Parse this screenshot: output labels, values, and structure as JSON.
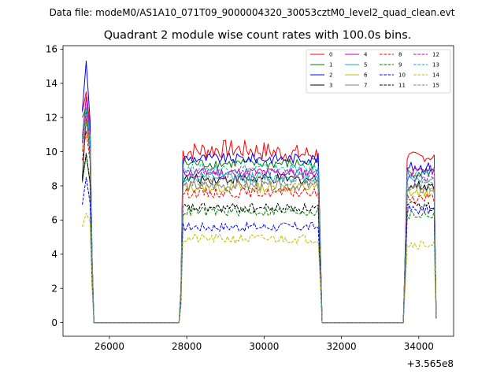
{
  "header": {
    "file_line": "Data file: modeM0/AS1A10_071T09_9000004320_30053cztM0_level2_quad_clean.evt"
  },
  "chart_data": {
    "type": "line",
    "title": "Quadrant 2 module wise count rates with 100.0s bins.",
    "xlabel": "",
    "ylabel": "",
    "x_offset_label": "+3.565e8",
    "xlim": [
      24800,
      34900
    ],
    "ylim": [
      -0.8,
      16.2
    ],
    "x_ticks": [
      26000,
      28000,
      30000,
      32000,
      34000
    ],
    "x_tick_labels": [
      "26000",
      "28000",
      "30000",
      "32000",
      "34000"
    ],
    "y_ticks": [
      0,
      2,
      4,
      6,
      8,
      10,
      12,
      14,
      16
    ],
    "y_tick_labels": [
      "0",
      "2",
      "4",
      "6",
      "8",
      "10",
      "12",
      "14",
      "16"
    ],
    "grid": false,
    "legend_position": "top-right",
    "segments": [
      {
        "start": 25300,
        "end": 25500,
        "ramp_down_to": 25600
      },
      {
        "ramp_up_from": 27800,
        "start": 27900,
        "end": 31400,
        "ramp_down_to": 31500
      },
      {
        "ramp_up_from": 33600,
        "start": 33700,
        "end": 34400,
        "ramp_down_to": null
      }
    ],
    "series": [
      {
        "name": "0",
        "color": "#ff0000",
        "style": "solid",
        "level": 10.0,
        "first_peak": [
          12.3,
          13.5,
          11.5
        ],
        "third_level": 9.7
      },
      {
        "name": "1",
        "color": "#008000",
        "style": "solid",
        "level": 9.3,
        "first_peak": [
          12.0,
          12.6,
          10.6
        ],
        "third_level": 8.8
      },
      {
        "name": "2",
        "color": "#0000ff",
        "style": "solid",
        "level": 9.6,
        "first_peak": [
          12.4,
          15.3,
          11.8
        ],
        "third_level": 9.1
      },
      {
        "name": "3",
        "color": "#000000",
        "style": "solid",
        "level": 8.4,
        "first_peak": [
          8.4,
          12.1,
          9.8
        ],
        "third_level": 8.0
      },
      {
        "name": "4",
        "color": "#bf00bf",
        "style": "solid",
        "level": 8.8,
        "first_peak": [
          10.9,
          13.2,
          11.0
        ],
        "third_level": 8.9
      },
      {
        "name": "5",
        "color": "#00bfbf",
        "style": "solid",
        "level": 8.5,
        "first_peak": [
          10.7,
          12.6,
          10.9
        ],
        "third_level": 8.4
      },
      {
        "name": "6",
        "color": "#bfbf00",
        "style": "solid",
        "level": 7.9,
        "first_peak": [
          10.1,
          12.2,
          10.3
        ],
        "third_level": 7.6
      },
      {
        "name": "7",
        "color": "#808080",
        "style": "solid",
        "level": 8.0,
        "first_peak": [
          10.6,
          12.4,
          10.7
        ],
        "third_level": 7.8
      },
      {
        "name": "8",
        "color": "#ff0000",
        "style": "dashed",
        "level": 7.6,
        "first_peak": [
          9.5,
          11.2,
          9.4
        ],
        "third_level": 7.3
      },
      {
        "name": "9",
        "color": "#008000",
        "style": "dashed",
        "level": 6.5,
        "first_peak": [
          8.2,
          9.8,
          8.1
        ],
        "third_level": 6.3
      },
      {
        "name": "10",
        "color": "#0000ff",
        "style": "dashed",
        "level": 5.6,
        "first_peak": [
          6.9,
          8.5,
          7.0
        ],
        "third_level": 6.6
      },
      {
        "name": "11",
        "color": "#000000",
        "style": "dashed",
        "level": 6.7,
        "first_peak": [
          8.3,
          9.9,
          8.2
        ],
        "third_level": 6.8
      },
      {
        "name": "12",
        "color": "#bf00bf",
        "style": "dashed",
        "level": 8.7,
        "first_peak": [
          10.5,
          12.4,
          10.5
        ],
        "third_level": 8.5
      },
      {
        "name": "13",
        "color": "#00bfbf",
        "style": "dashed",
        "level": 9.0,
        "first_peak": [
          10.8,
          12.6,
          10.8
        ],
        "third_level": 8.7
      },
      {
        "name": "14",
        "color": "#bfbf00",
        "style": "dashed",
        "level": 4.9,
        "first_peak": [
          5.6,
          6.4,
          5.9
        ],
        "third_level": 4.6
      },
      {
        "name": "15",
        "color": "#808080",
        "style": "dashed",
        "level": 8.3,
        "first_peak": [
          10.0,
          11.8,
          9.9
        ],
        "third_level": 8.0
      }
    ]
  }
}
